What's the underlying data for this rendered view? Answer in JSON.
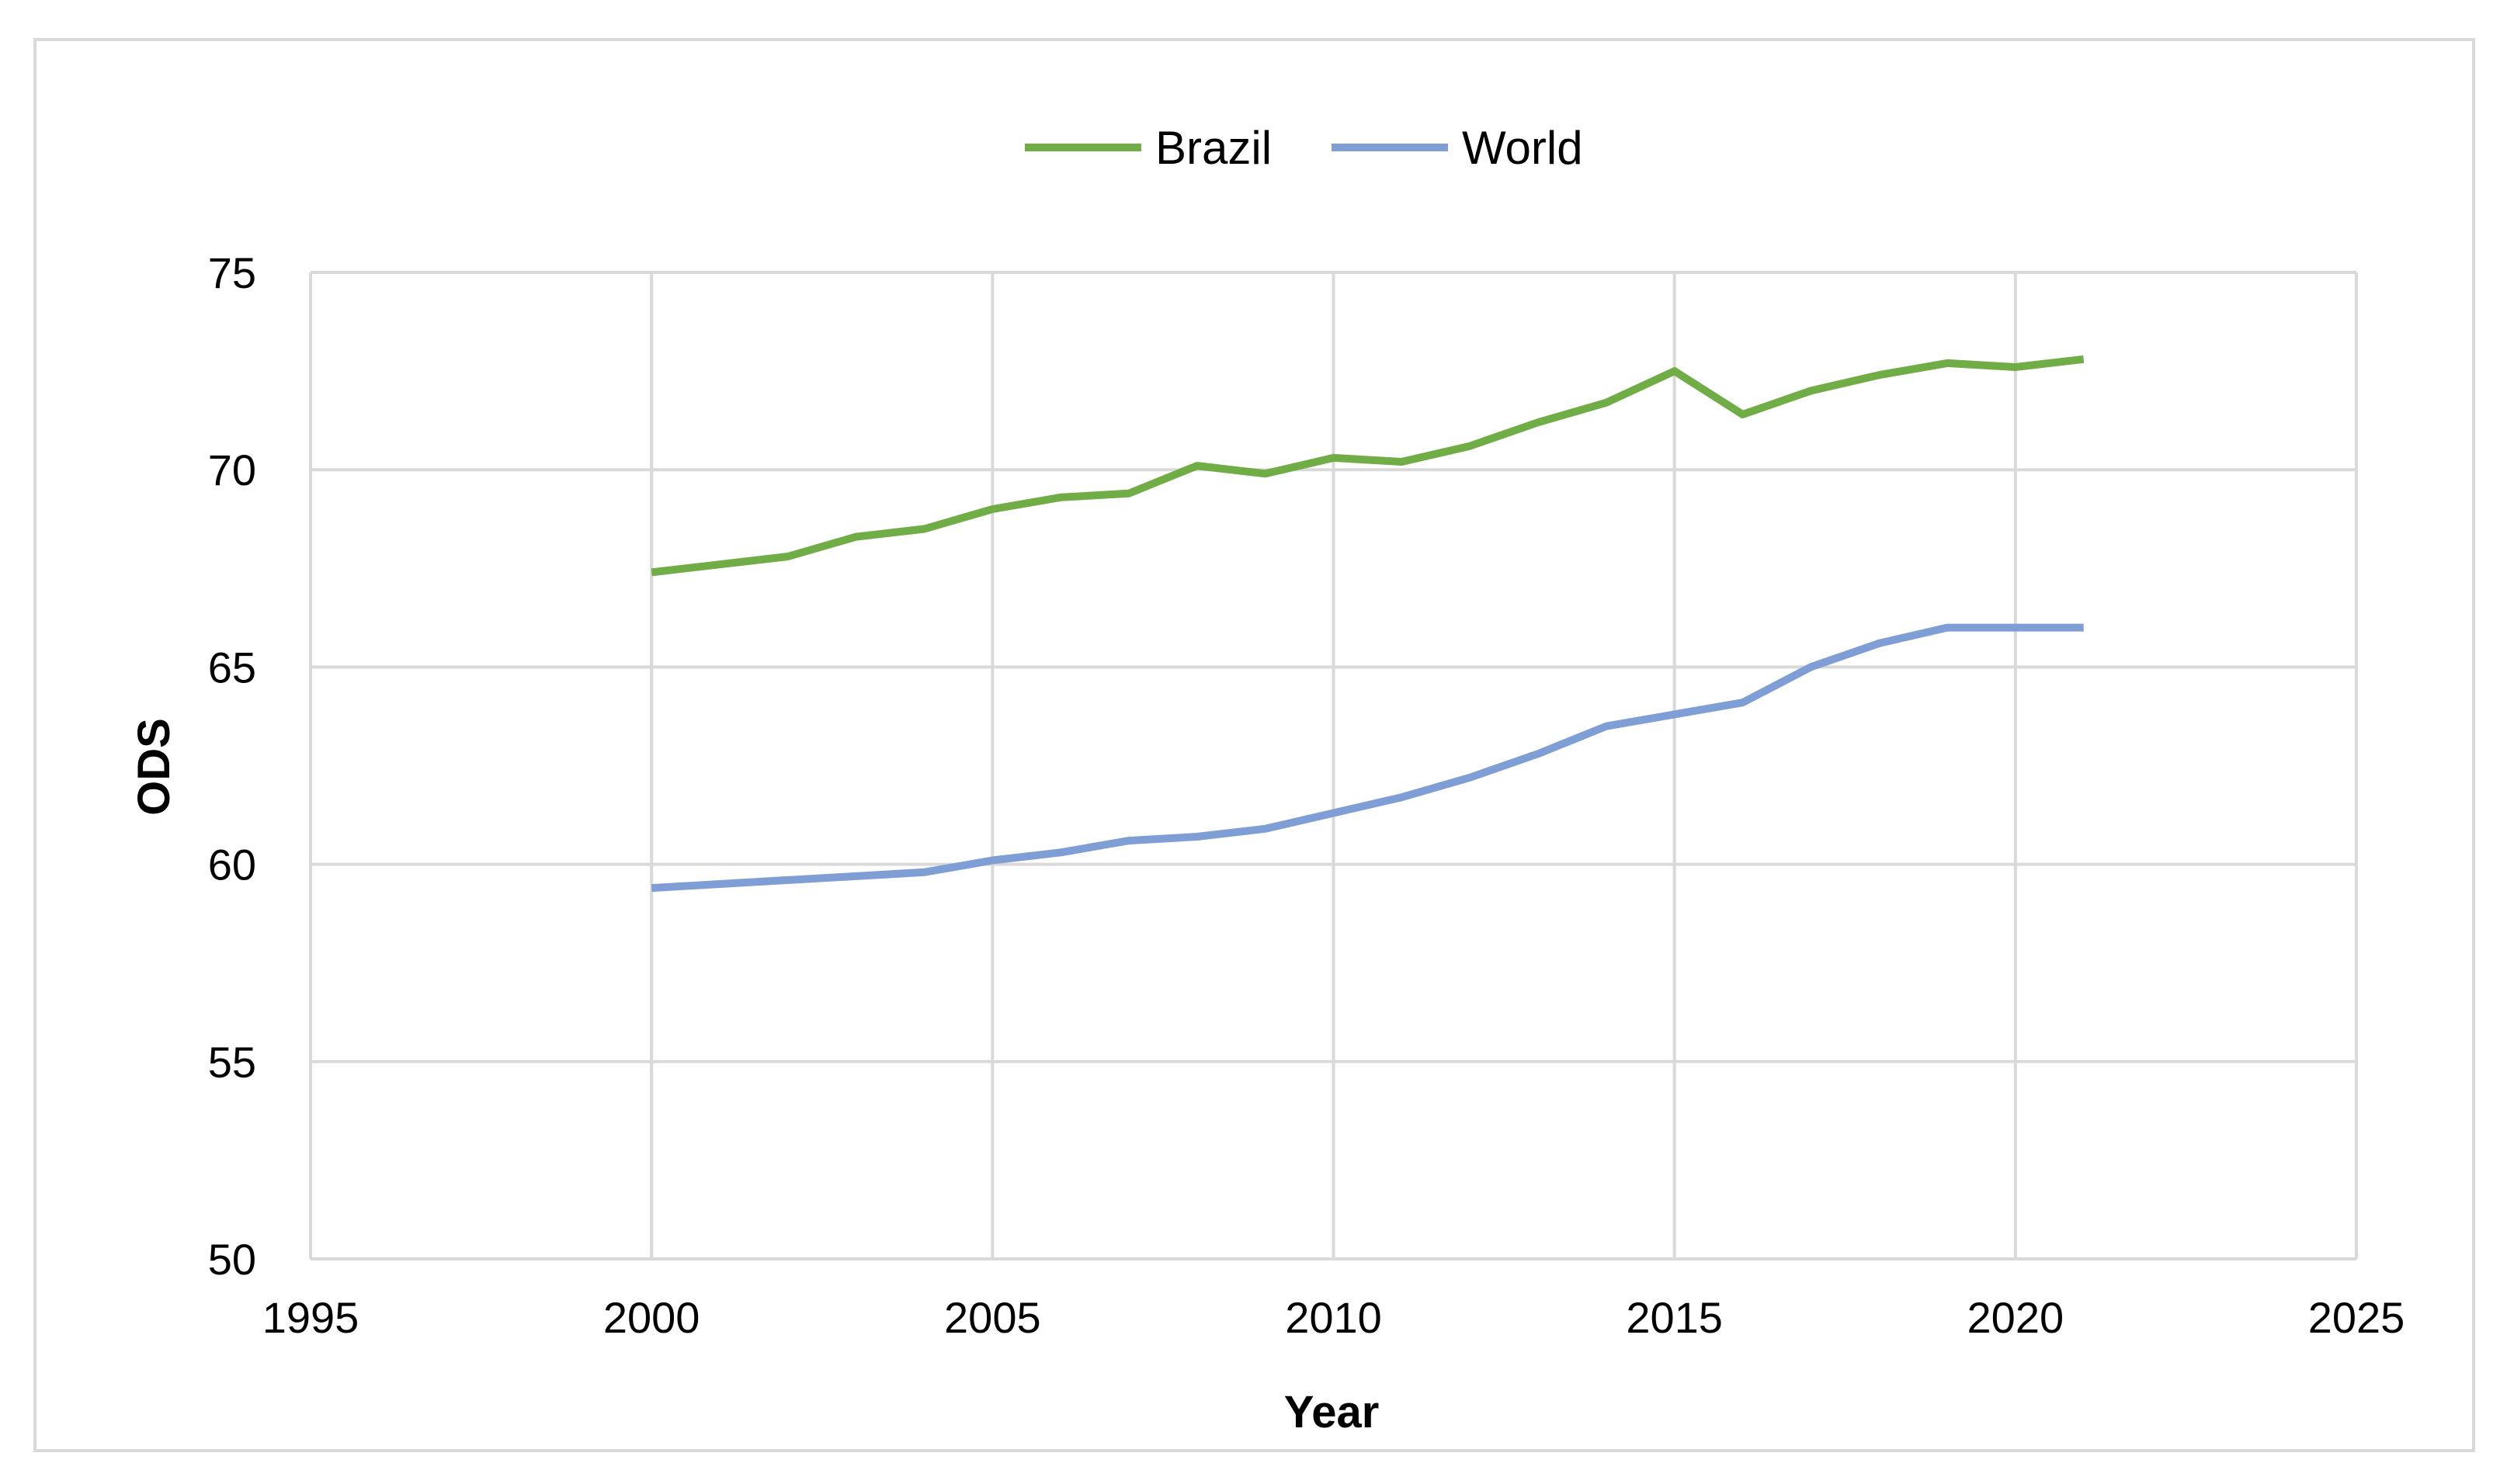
{
  "chart_data": {
    "type": "line",
    "title": "",
    "xlabel": "Year",
    "ylabel": "ODS",
    "xlim": [
      1995,
      2025
    ],
    "ylim": [
      50,
      75
    ],
    "xticks": [
      1995,
      2000,
      2005,
      2010,
      2015,
      2020,
      2025
    ],
    "yticks": [
      50,
      55,
      60,
      65,
      70,
      75
    ],
    "grid": true,
    "legend_position": "top-center",
    "x": [
      2000,
      2001,
      2002,
      2003,
      2004,
      2005,
      2006,
      2007,
      2008,
      2009,
      2010,
      2011,
      2012,
      2013,
      2014,
      2015,
      2016,
      2017,
      2018,
      2019,
      2020,
      2021
    ],
    "series": [
      {
        "name": "Brazil",
        "color": "#70ad47",
        "values": [
          67.4,
          67.6,
          67.8,
          68.3,
          68.5,
          69.0,
          69.3,
          69.4,
          70.1,
          69.9,
          70.3,
          70.2,
          70.6,
          71.2,
          71.7,
          72.5,
          71.4,
          72.0,
          72.4,
          72.7,
          72.6,
          72.8
        ]
      },
      {
        "name": "World",
        "color": "#7f9ed6",
        "values": [
          59.4,
          59.5,
          59.6,
          59.7,
          59.8,
          60.1,
          60.3,
          60.6,
          60.7,
          60.9,
          61.3,
          61.7,
          62.2,
          62.8,
          63.5,
          63.8,
          64.1,
          65.0,
          65.6,
          66.0,
          66.0,
          66.0
        ]
      }
    ]
  }
}
